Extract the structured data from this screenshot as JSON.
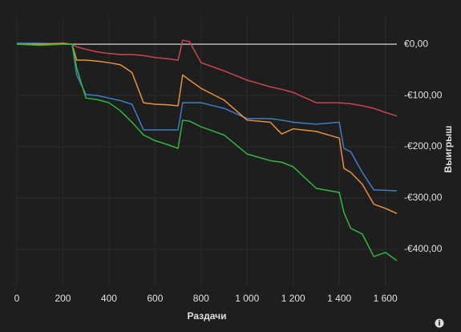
{
  "chart_data": {
    "type": "line",
    "x_label": "Раздачи",
    "y_label": "Выигрыш",
    "x": [
      0,
      100,
      200,
      240,
      260,
      300,
      350,
      400,
      450,
      500,
      550,
      600,
      650,
      700,
      720,
      750,
      800,
      900,
      1000,
      1100,
      1150,
      1200,
      1300,
      1400,
      1420,
      1450,
      1500,
      1550,
      1600,
      1650
    ],
    "series": [
      {
        "color": "#c8474b",
        "values": [
          0,
          0,
          0,
          0,
          -5,
          -10,
          -15,
          -18,
          -20,
          -20,
          -22,
          -26,
          -28,
          -31,
          8,
          5,
          -36,
          -52,
          -70,
          -83,
          -88,
          -94,
          -114,
          -114,
          -115,
          -116,
          -120,
          -125,
          -133,
          -140
        ]
      },
      {
        "color": "#3d7ec6",
        "values": [
          2,
          2,
          0,
          0,
          -60,
          -98,
          -100,
          -105,
          -110,
          -117,
          -167,
          -167,
          -167,
          -167,
          -114,
          -114,
          -114,
          -125,
          -145,
          -145,
          -148,
          -152,
          -156,
          -152,
          -203,
          -210,
          -250,
          -284,
          -285,
          -286
        ]
      },
      {
        "color": "#e8913a",
        "values": [
          0,
          0,
          2,
          0,
          -31,
          -31,
          -33,
          -36,
          -40,
          -55,
          -114,
          -117,
          -118,
          -120,
          -60,
          -70,
          -86,
          -109,
          -148,
          -152,
          -175,
          -165,
          -170,
          -183,
          -242,
          -250,
          -273,
          -312,
          -320,
          -330
        ]
      },
      {
        "color": "#2dbb3a",
        "values": [
          0,
          -2,
          0,
          0,
          -47,
          -105,
          -108,
          -114,
          -130,
          -152,
          -177,
          -188,
          -195,
          -203,
          -148,
          -150,
          -161,
          -177,
          -214,
          -227,
          -230,
          -239,
          -281,
          -289,
          -328,
          -359,
          -370,
          -414,
          -406,
          -422
        ]
      }
    ],
    "xlim": [
      0,
      1650
    ],
    "ylim": [
      -472,
      55
    ],
    "xticks": [
      0,
      200,
      400,
      600,
      800,
      {
        "value": 1000,
        "label": "1 000"
      },
      {
        "value": 1200,
        "label": "1 200"
      },
      {
        "value": 1400,
        "label": "1 400"
      },
      {
        "value": 1600,
        "label": "1 600"
      }
    ],
    "yticks": [
      {
        "value": -400,
        "label": "-€400,00"
      },
      {
        "value": -300,
        "label": "-€300,00"
      },
      {
        "value": -200,
        "label": "-€200,00"
      },
      {
        "value": -100,
        "label": "-€100,00"
      },
      {
        "value": 0,
        "label": "€0,00"
      }
    ],
    "grid": true
  }
}
